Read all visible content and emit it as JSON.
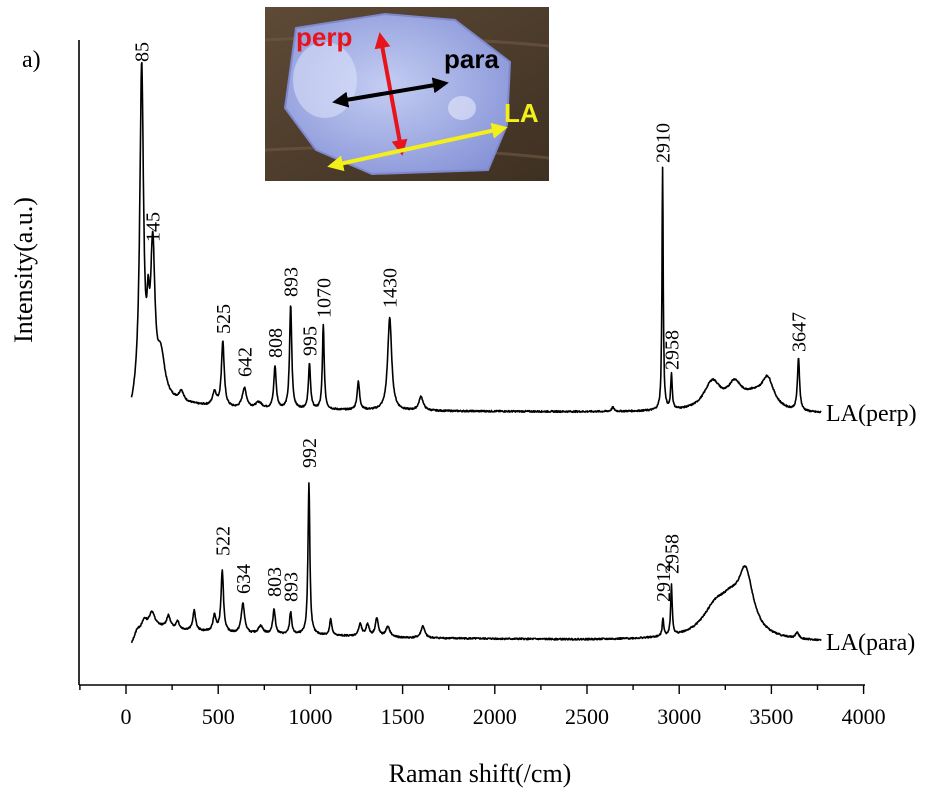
{
  "chart_data": {
    "type": "line",
    "panel_label": "a)",
    "xlabel": "Raman shift(/cm)",
    "ylabel": "Intensity(a.u.)",
    "xlim": [
      -300,
      4000
    ],
    "xticks": [
      0,
      500,
      1000,
      1500,
      2000,
      2500,
      3000,
      3500,
      4000
    ],
    "xtick_labels": [
      "0",
      "500",
      "1000",
      "1500",
      "2000",
      "2500",
      "3000",
      "3500",
      "4000"
    ],
    "y_ticks_shown": false,
    "series": [
      {
        "name": "LA(perp)",
        "color": "#000000",
        "peaks": [
          {
            "x": 85,
            "label": "85"
          },
          {
            "x": 145,
            "label": "145"
          },
          {
            "x": 525,
            "label": "525"
          },
          {
            "x": 642,
            "label": "642"
          },
          {
            "x": 808,
            "label": "808"
          },
          {
            "x": 893,
            "label": "893"
          },
          {
            "x": 995,
            "label": "995"
          },
          {
            "x": 1070,
            "label": "1070"
          },
          {
            "x": 1430,
            "label": "1430"
          },
          {
            "x": 2910,
            "label": "2910"
          },
          {
            "x": 2958,
            "label": "2958"
          },
          {
            "x": 3647,
            "label": "3647"
          }
        ]
      },
      {
        "name": "LA(para)",
        "color": "#000000",
        "peaks": [
          {
            "x": 522,
            "label": "522"
          },
          {
            "x": 634,
            "label": "634"
          },
          {
            "x": 803,
            "label": "803"
          },
          {
            "x": 893,
            "label": "893"
          },
          {
            "x": 992,
            "label": "992"
          },
          {
            "x": 2912,
            "label": "2912"
          },
          {
            "x": 2958,
            "label": "2958"
          }
        ]
      }
    ],
    "inset": {
      "labels": {
        "perp": "perp",
        "para": "para",
        "la": "LA"
      },
      "colors": {
        "perp": "#e8141c",
        "para": "#000000",
        "la": "#f2ef1a"
      }
    }
  }
}
